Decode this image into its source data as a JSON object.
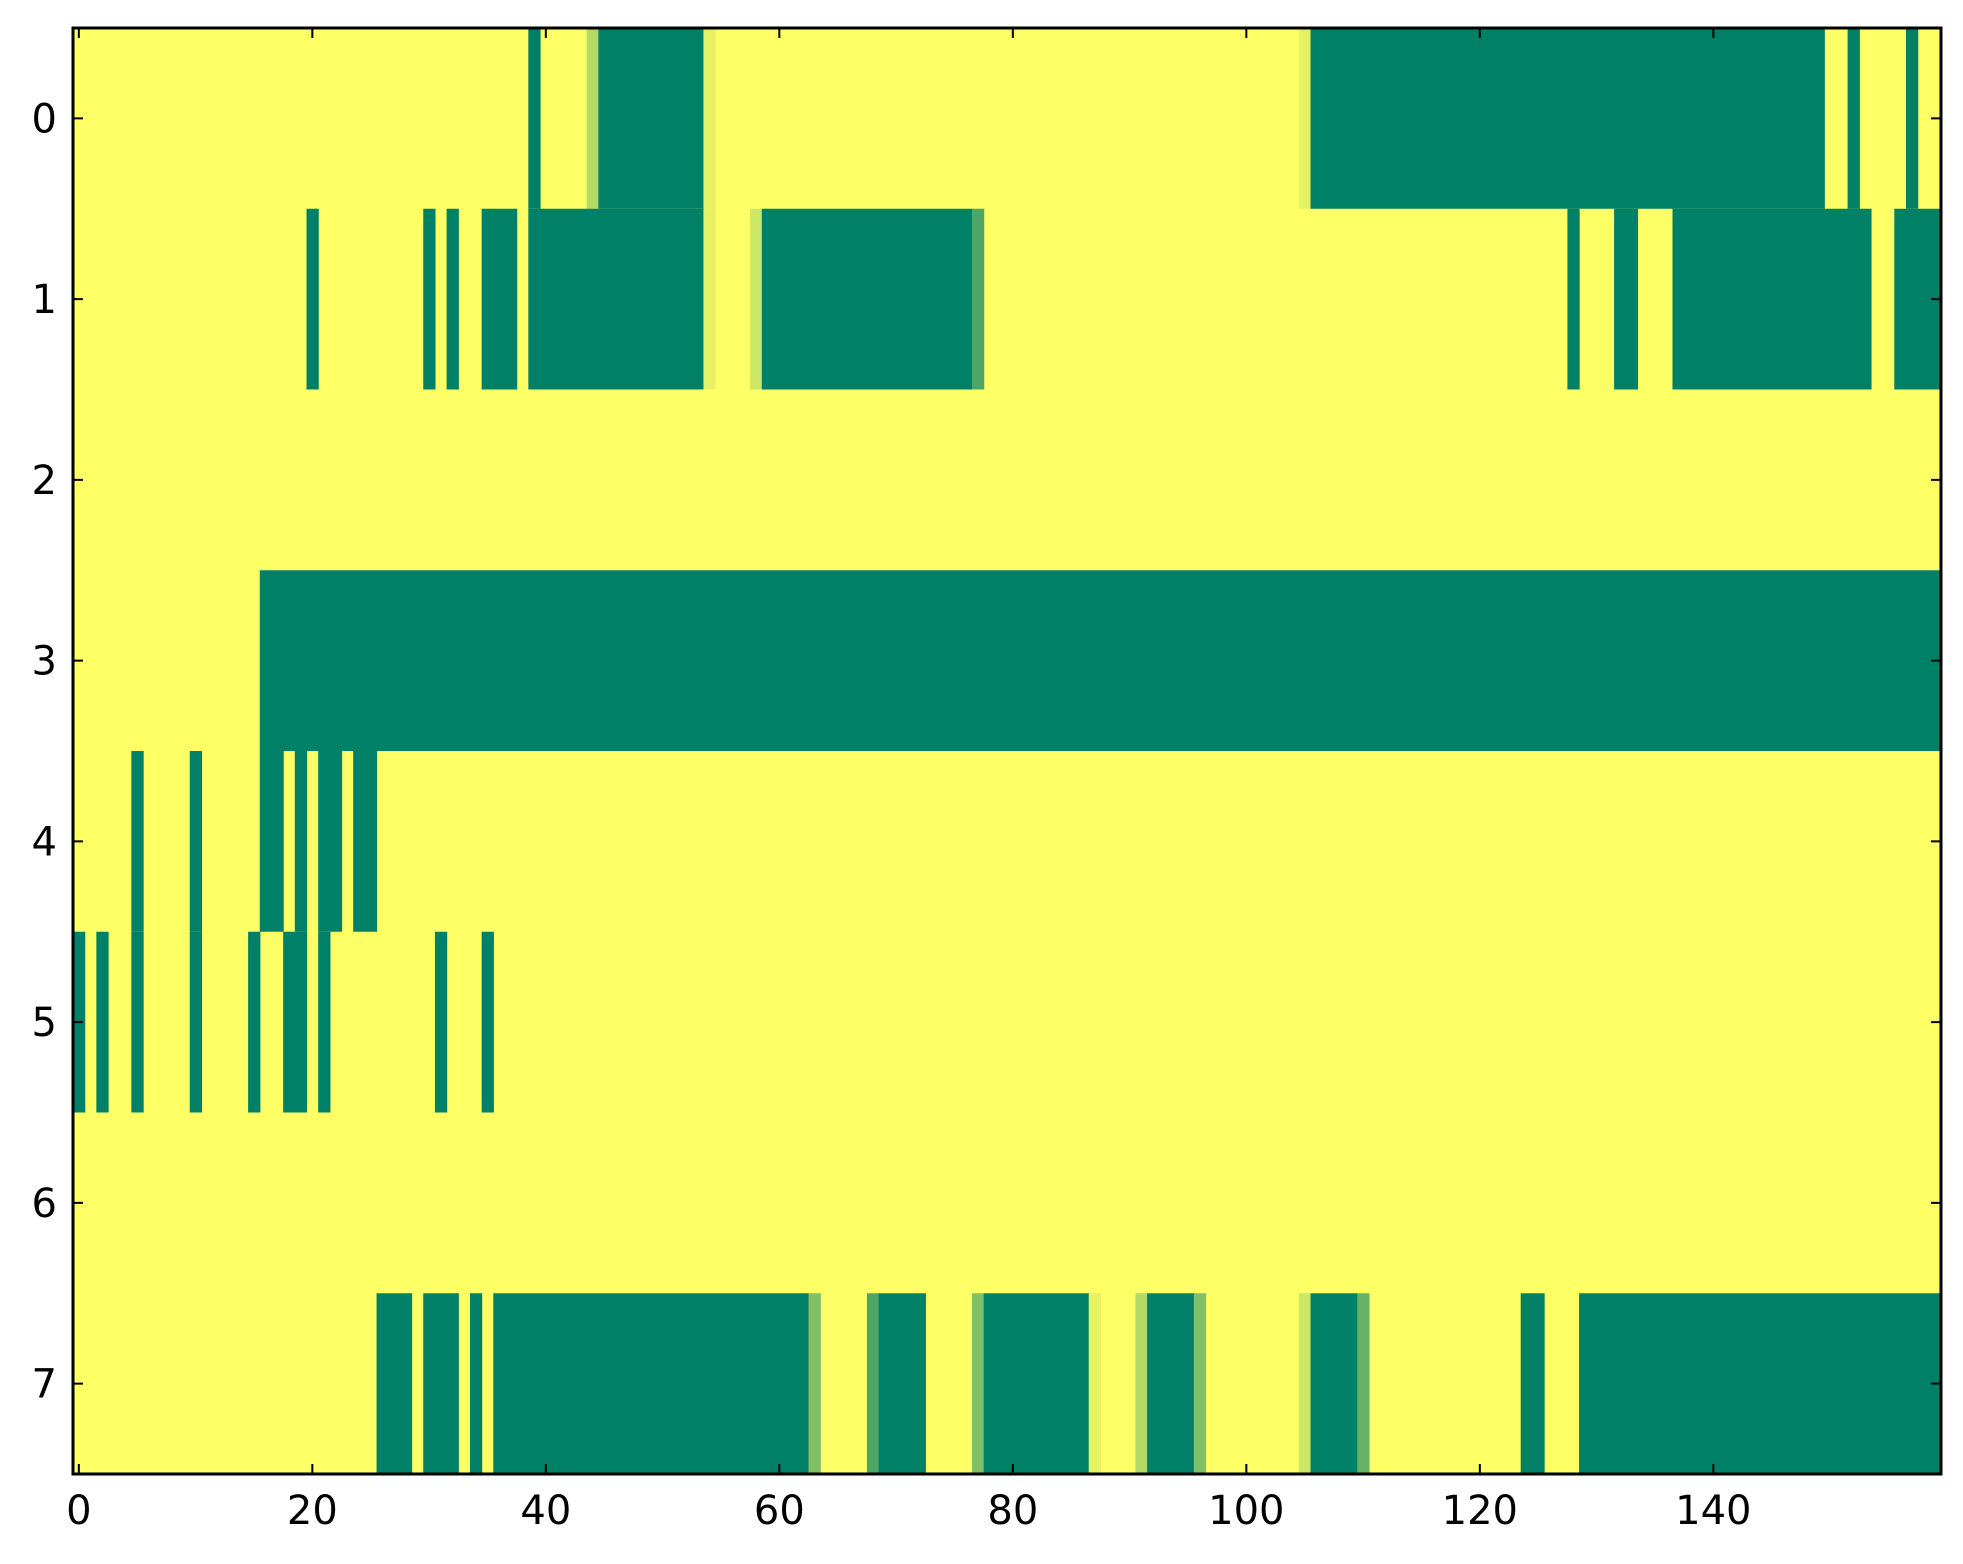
{
  "chart_data": {
    "type": "heatmap",
    "title": "",
    "xlabel": "",
    "ylabel": "",
    "xlim": [
      -0.5,
      159.5
    ],
    "ylim": [
      7.5,
      -0.5
    ],
    "x_ticks": [
      0,
      20,
      40,
      60,
      80,
      100,
      120,
      140
    ],
    "y_ticks": [
      0,
      1,
      2,
      3,
      4,
      5,
      6,
      7
    ],
    "x_tick_labels": [
      "0",
      "20",
      "40",
      "60",
      "80",
      "100",
      "120",
      "140"
    ],
    "y_tick_labels": [
      "0",
      "1",
      "2",
      "3",
      "4",
      "5",
      "6",
      "7"
    ],
    "columns": 160,
    "grid": false,
    "legend": "none",
    "colorscale": {
      "low": "#ffff66",
      "high": "#008066"
    },
    "background_value": 0.0,
    "rows": [
      {
        "row": 0,
        "segments": [
          {
            "x0": 39,
            "x1": 39,
            "value": 1.0
          },
          {
            "x0": 44,
            "x1": 44,
            "value": 0.3
          },
          {
            "x0": 45,
            "x1": 53,
            "value": 1.0
          },
          {
            "x0": 54,
            "x1": 54,
            "value": 0.1
          },
          {
            "x0": 105,
            "x1": 105,
            "value": 0.1
          },
          {
            "x0": 106,
            "x1": 149,
            "value": 1.0
          },
          {
            "x0": 152,
            "x1": 152,
            "value": 1.0
          },
          {
            "x0": 157,
            "x1": 157,
            "value": 1.0
          }
        ]
      },
      {
        "row": 1,
        "segments": [
          {
            "x0": 20,
            "x1": 20,
            "value": 1.0
          },
          {
            "x0": 30,
            "x1": 30,
            "value": 1.0
          },
          {
            "x0": 32,
            "x1": 32,
            "value": 1.0
          },
          {
            "x0": 35,
            "x1": 37,
            "value": 1.0
          },
          {
            "x0": 39,
            "x1": 53,
            "value": 1.0
          },
          {
            "x0": 54,
            "x1": 54,
            "value": 0.1
          },
          {
            "x0": 58,
            "x1": 58,
            "value": 0.2
          },
          {
            "x0": 59,
            "x1": 76,
            "value": 1.0
          },
          {
            "x0": 77,
            "x1": 77,
            "value": 0.7
          },
          {
            "x0": 128,
            "x1": 128,
            "value": 1.0
          },
          {
            "x0": 132,
            "x1": 133,
            "value": 1.0
          },
          {
            "x0": 137,
            "x1": 153,
            "value": 1.0
          },
          {
            "x0": 156,
            "x1": 159,
            "value": 1.0
          }
        ]
      },
      {
        "row": 2,
        "segments": []
      },
      {
        "row": 3,
        "segments": [
          {
            "x0": 16,
            "x1": 159,
            "value": 1.0
          }
        ]
      },
      {
        "row": 4,
        "segments": [
          {
            "x0": 5,
            "x1": 5,
            "value": 1.0
          },
          {
            "x0": 10,
            "x1": 10,
            "value": 1.0
          },
          {
            "x0": 16,
            "x1": 17,
            "value": 1.0
          },
          {
            "x0": 19,
            "x1": 19,
            "value": 1.0
          },
          {
            "x0": 21,
            "x1": 22,
            "value": 1.0
          },
          {
            "x0": 24,
            "x1": 25,
            "value": 1.0
          }
        ]
      },
      {
        "row": 5,
        "segments": [
          {
            "x0": 0,
            "x1": 0,
            "value": 1.0
          },
          {
            "x0": 2,
            "x1": 2,
            "value": 1.0
          },
          {
            "x0": 5,
            "x1": 5,
            "value": 1.0
          },
          {
            "x0": 10,
            "x1": 10,
            "value": 1.0
          },
          {
            "x0": 15,
            "x1": 15,
            "value": 1.0
          },
          {
            "x0": 18,
            "x1": 19,
            "value": 1.0
          },
          {
            "x0": 21,
            "x1": 21,
            "value": 1.0
          },
          {
            "x0": 31,
            "x1": 31,
            "value": 1.0
          },
          {
            "x0": 35,
            "x1": 35,
            "value": 1.0
          }
        ]
      },
      {
        "row": 6,
        "segments": []
      },
      {
        "row": 7,
        "segments": [
          {
            "x0": 26,
            "x1": 28,
            "value": 1.0
          },
          {
            "x0": 30,
            "x1": 32,
            "value": 1.0
          },
          {
            "x0": 34,
            "x1": 34,
            "value": 1.0
          },
          {
            "x0": 36,
            "x1": 62,
            "value": 1.0
          },
          {
            "x0": 63,
            "x1": 63,
            "value": 0.5
          },
          {
            "x0": 68,
            "x1": 68,
            "value": 0.7
          },
          {
            "x0": 69,
            "x1": 72,
            "value": 1.0
          },
          {
            "x0": 77,
            "x1": 77,
            "value": 0.5
          },
          {
            "x0": 78,
            "x1": 86,
            "value": 1.0
          },
          {
            "x0": 87,
            "x1": 87,
            "value": 0.1
          },
          {
            "x0": 91,
            "x1": 91,
            "value": 0.3
          },
          {
            "x0": 92,
            "x1": 95,
            "value": 1.0
          },
          {
            "x0": 96,
            "x1": 96,
            "value": 0.5
          },
          {
            "x0": 105,
            "x1": 105,
            "value": 0.2
          },
          {
            "x0": 106,
            "x1": 109,
            "value": 1.0
          },
          {
            "x0": 110,
            "x1": 110,
            "value": 0.6
          },
          {
            "x0": 124,
            "x1": 125,
            "value": 1.0
          },
          {
            "x0": 129,
            "x1": 159,
            "value": 1.0
          }
        ]
      }
    ]
  }
}
